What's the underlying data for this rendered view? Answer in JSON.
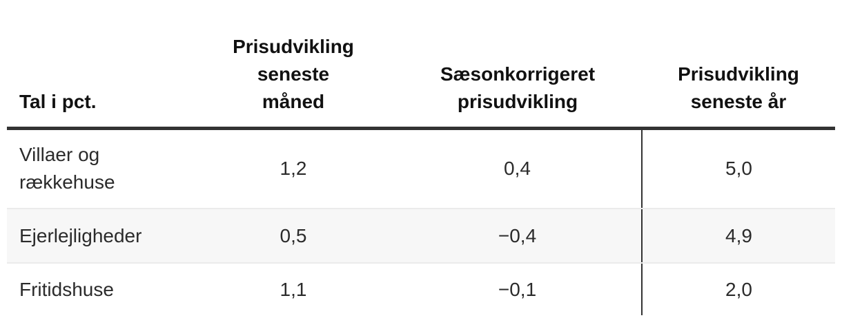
{
  "table": {
    "corner_label": "Tal i pct.",
    "column_headers": [
      "Prisudvikling\nseneste\nmåned",
      "Sæsonkorrigeret\nprisudvikling",
      "Prisudvikling\nseneste år"
    ],
    "rows": [
      {
        "label": "Villaer og rækkehuse",
        "values": [
          "1,2",
          "0,4",
          "5,0"
        ]
      },
      {
        "label": "Ejerlejligheder",
        "values": [
          "0,5",
          "−0,4",
          "4,9"
        ]
      },
      {
        "label": "Fritidshuse",
        "values": [
          "1,1",
          "−0,1",
          "2,0"
        ]
      }
    ]
  },
  "chart_data": {
    "type": "table",
    "title": "",
    "corner_label": "Tal i pct.",
    "columns": [
      "Prisudvikling seneste måned",
      "Sæsonkorrigeret prisudvikling",
      "Prisudvikling seneste år"
    ],
    "rows": [
      {
        "label": "Villaer og rækkehuse",
        "values": [
          1.2,
          0.4,
          5.0
        ]
      },
      {
        "label": "Ejerlejligheder",
        "values": [
          0.5,
          -0.4,
          4.9
        ]
      },
      {
        "label": "Fritidshuse",
        "values": [
          1.1,
          -0.1,
          2.0
        ]
      }
    ],
    "units": "pct.",
    "decimal_separator": ","
  },
  "colors": {
    "header_rule": "#333333",
    "column_divider": "#333333",
    "row_stripe": "#f7f7f7",
    "row_border": "#ebebeb",
    "header_text": "#111111",
    "body_text": "#2b2b2b",
    "background": "#ffffff"
  }
}
